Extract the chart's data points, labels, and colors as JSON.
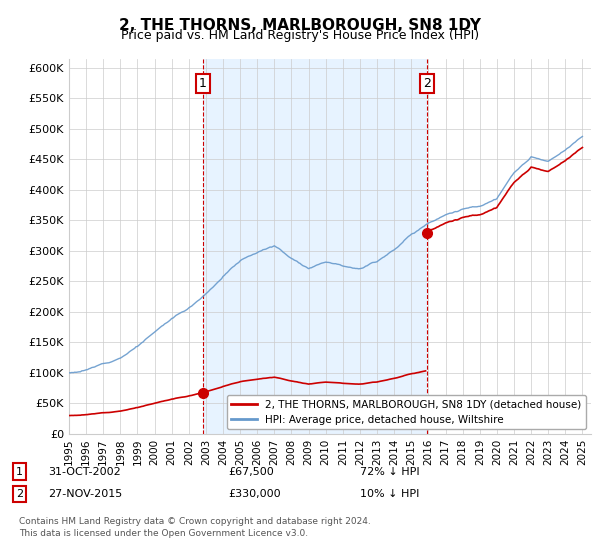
{
  "title": "2, THE THORNS, MARLBOROUGH, SN8 1DY",
  "subtitle": "Price paid vs. HM Land Registry's House Price Index (HPI)",
  "ylabel_ticks": [
    "£0",
    "£50K",
    "£100K",
    "£150K",
    "£200K",
    "£250K",
    "£300K",
    "£350K",
    "£400K",
    "£450K",
    "£500K",
    "£550K",
    "£600K"
  ],
  "ytick_values": [
    0,
    50000,
    100000,
    150000,
    200000,
    250000,
    300000,
    350000,
    400000,
    450000,
    500000,
    550000,
    600000
  ],
  "ylim": [
    0,
    615000
  ],
  "xlim_start": 1995.0,
  "xlim_end": 2025.5,
  "sale1_year": 2002.83,
  "sale1_price": 67500,
  "sale1_label": "1",
  "sale1_date": "31-OCT-2002",
  "sale1_price_str": "£67,500",
  "sale1_hpi": "72% ↓ HPI",
  "sale2_year": 2015.9,
  "sale2_price": 330000,
  "sale2_label": "2",
  "sale2_date": "27-NOV-2015",
  "sale2_price_str": "£330,000",
  "sale2_hpi": "10% ↓ HPI",
  "line_color_property": "#cc0000",
  "line_color_hpi": "#6699cc",
  "fill_color": "#ddeeff",
  "marker_color": "#cc0000",
  "vline_color": "#cc0000",
  "background_color": "#ffffff",
  "grid_color": "#cccccc",
  "legend_label_property": "2, THE THORNS, MARLBOROUGH, SN8 1DY (detached house)",
  "legend_label_hpi": "HPI: Average price, detached house, Wiltshire",
  "footnote1": "Contains HM Land Registry data © Crown copyright and database right 2024.",
  "footnote2": "This data is licensed under the Open Government Licence v3.0."
}
